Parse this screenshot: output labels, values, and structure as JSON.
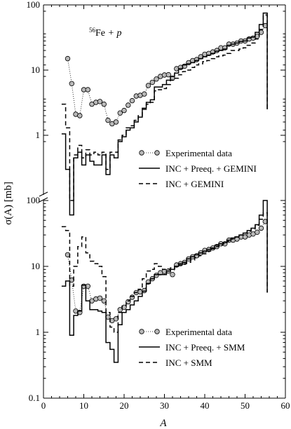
{
  "chart_data": {
    "type": "line",
    "annotation_species": "Fe",
    "annotation_mass": "56",
    "annotation_rest": " + p",
    "xlabel": "A",
    "ylabel": "σ(A) [mb]",
    "xlim": [
      0,
      60
    ],
    "x_ticks": [
      0,
      10,
      20,
      30,
      40,
      50,
      60
    ],
    "y_scale": "log",
    "y_tick_labels_top": [
      "100",
      "10",
      "1"
    ],
    "y_tick_labels_bottom": [
      "100",
      "10",
      "1",
      "0.1"
    ],
    "panels": [
      {
        "name": "top",
        "ylim": [
          0.1,
          100
        ],
        "legend_placement": "right",
        "legend": [
          "Experimental data",
          "INC + Preeq. + GEMINI",
          "INC + GEMINI"
        ],
        "series": [
          {
            "name": "Experimental data",
            "style": "markers-dotted",
            "x": [
              6,
              7,
              8,
              9,
              10,
              11,
              12,
              13,
              14,
              15,
              16,
              17,
              18,
              19,
              20,
              21,
              22,
              23,
              24,
              25,
              26,
              27,
              28,
              29,
              30,
              31,
              32,
              33,
              34,
              35,
              36,
              37,
              38,
              39,
              40,
              41,
              42,
              43,
              44,
              45,
              46,
              47,
              48,
              49,
              50,
              51,
              52,
              53,
              54,
              55
            ],
            "y": [
              15,
              6.2,
              2.1,
              2.0,
              5.0,
              5.0,
              3.0,
              3.2,
              3.3,
              3.0,
              1.7,
              1.5,
              1.6,
              2.2,
              2.4,
              2.9,
              3.4,
              4.0,
              4.1,
              4.3,
              5.8,
              6.5,
              7.3,
              8.0,
              8.4,
              8.5,
              7.5,
              10.5,
              11,
              11.5,
              13,
              14,
              14.5,
              16,
              17.5,
              18,
              19,
              20,
              22,
              22,
              25,
              25,
              26,
              28,
              28,
              30,
              31,
              33,
              38,
              48
            ]
          },
          {
            "name": "INC + Preeq. + GEMINI",
            "style": "solid",
            "x": [
              5,
              6,
              7,
              8,
              9,
              10,
              11,
              12,
              13,
              14,
              15,
              16,
              17,
              18,
              19,
              20,
              21,
              22,
              23,
              24,
              25,
              26,
              27,
              28,
              29,
              30,
              31,
              32,
              33,
              34,
              35,
              36,
              37,
              38,
              39,
              40,
              41,
              42,
              43,
              44,
              45,
              46,
              47,
              48,
              49,
              50,
              51,
              52,
              53,
              54,
              55
            ],
            "y": [
              1.05,
              0.3,
              0.06,
              0.45,
              0.55,
              0.35,
              0.5,
              0.4,
              0.35,
              0.35,
              0.5,
              0.25,
              0.5,
              0.45,
              0.8,
              0.95,
              1.2,
              1.3,
              1.6,
              1.9,
              2.6,
              3.2,
              3.5,
              5.5,
              5.5,
              6.0,
              7.0,
              8.0,
              9.0,
              10.5,
              12,
              12.5,
              13,
              14,
              15,
              16,
              17,
              18,
              19.5,
              20,
              21,
              24,
              25,
              26,
              27.5,
              28,
              31,
              32,
              38,
              50,
              75
            ],
            "end_drop": 2.5
          },
          {
            "name": "INC + GEMINI",
            "style": "dashed",
            "x": [
              5,
              6,
              7,
              8,
              9,
              10,
              11,
              12,
              13,
              14,
              15,
              16,
              17,
              18,
              19,
              20,
              21,
              22,
              23,
              24,
              25,
              26,
              27,
              28,
              29,
              30,
              31,
              32,
              33,
              34,
              35,
              36,
              37,
              38,
              39,
              40,
              41,
              42,
              43,
              44,
              45,
              46,
              47,
              48,
              49,
              50,
              51,
              52,
              53,
              54,
              55
            ],
            "y": [
              3.0,
              1.3,
              0.1,
              0.5,
              0.7,
              0.45,
              0.6,
              0.5,
              0.55,
              0.5,
              0.55,
              0.3,
              0.55,
              0.55,
              0.85,
              1.0,
              1.3,
              1.4,
              1.7,
              2.0,
              2.5,
              3.0,
              3.2,
              4.8,
              5.0,
              5.2,
              6.0,
              7.0,
              7.5,
              8.5,
              9.5,
              10,
              11,
              12,
              12.5,
              13.5,
              14,
              15,
              16,
              16.5,
              17,
              18,
              20,
              20,
              21,
              22,
              24,
              26,
              30,
              42,
              70
            ],
            "end_drop": 2.5
          }
        ]
      },
      {
        "name": "bottom",
        "ylim": [
          0.1,
          100
        ],
        "legend_placement": "right",
        "legend": [
          "Experimental data",
          "INC + Preeq. + SMM",
          "INC + SMM"
        ],
        "series": [
          {
            "name": "Experimental data",
            "style": "markers-dotted",
            "x": [
              6,
              7,
              8,
              9,
              10,
              11,
              12,
              13,
              14,
              15,
              16,
              17,
              18,
              19,
              20,
              21,
              22,
              23,
              24,
              25,
              26,
              27,
              28,
              29,
              30,
              31,
              32,
              33,
              34,
              35,
              36,
              37,
              38,
              39,
              40,
              41,
              42,
              43,
              44,
              45,
              46,
              47,
              48,
              49,
              50,
              51,
              52,
              53,
              54,
              55
            ],
            "y": [
              15,
              6.2,
              2.1,
              2.0,
              5.0,
              5.0,
              3.0,
              3.2,
              3.3,
              3.0,
              1.7,
              1.5,
              1.6,
              2.2,
              2.4,
              2.9,
              3.4,
              4.0,
              4.1,
              4.3,
              5.8,
              6.5,
              7.3,
              8.0,
              8.4,
              8.5,
              7.5,
              10.5,
              11,
              11.5,
              13,
              14,
              14.5,
              16,
              17.5,
              18,
              19,
              20,
              22,
              22,
              25,
              25,
              26,
              28,
              28,
              30,
              31,
              33,
              38,
              48
            ]
          },
          {
            "name": "INC + Preeq. + SMM",
            "style": "solid",
            "x": [
              5,
              6,
              7,
              8,
              9,
              10,
              11,
              12,
              13,
              14,
              15,
              16,
              17,
              18,
              19,
              20,
              21,
              22,
              23,
              24,
              25,
              26,
              27,
              28,
              29,
              30,
              31,
              32,
              33,
              34,
              35,
              36,
              37,
              38,
              39,
              40,
              41,
              42,
              43,
              44,
              45,
              46,
              47,
              48,
              49,
              50,
              51,
              52,
              53,
              54,
              55
            ],
            "y": [
              5.0,
              6.0,
              0.9,
              1.8,
              2.1,
              5.2,
              3.0,
              2.2,
              2.2,
              2.1,
              2.0,
              0.7,
              0.55,
              0.35,
              1.3,
              2.0,
              2.2,
              2.6,
              3.0,
              3.5,
              4.2,
              5.5,
              6.5,
              7.5,
              7.5,
              7.5,
              8.5,
              9.0,
              10,
              11,
              11.5,
              13,
              14,
              15,
              16,
              17,
              18,
              19,
              21,
              22,
              23,
              25,
              27,
              28,
              30,
              32,
              35,
              38,
              43,
              60,
              100
            ],
            "end_drop": 4
          },
          {
            "name": "INC + SMM",
            "style": "dashed",
            "x": [
              5,
              6,
              7,
              8,
              9,
              10,
              11,
              12,
              13,
              14,
              15,
              16,
              17,
              18,
              19,
              20,
              21,
              22,
              23,
              24,
              25,
              26,
              27,
              28,
              29,
              30,
              31,
              32,
              33,
              34,
              35,
              36,
              37,
              38,
              39,
              40,
              41,
              42,
              43,
              44,
              45,
              46,
              47,
              48,
              49,
              50,
              51,
              52,
              53,
              54,
              55
            ],
            "y": [
              40,
              35,
              5.0,
              10,
              20,
              28,
              16,
              12,
              11,
              10,
              7.0,
              2.0,
              1.2,
              1.0,
              2.0,
              2.5,
              3.0,
              3.5,
              4.0,
              4.5,
              6.5,
              8.5,
              9.0,
              11,
              10,
              9.0,
              9.0,
              9.5,
              10,
              10.5,
              11,
              11.5,
              12.5,
              13.5,
              14.5,
              15.5,
              17,
              18.5,
              20,
              21,
              22,
              24,
              26,
              28,
              30,
              32,
              34,
              37,
              42,
              52,
              65
            ],
            "end_drop": 4
          }
        ]
      }
    ]
  }
}
